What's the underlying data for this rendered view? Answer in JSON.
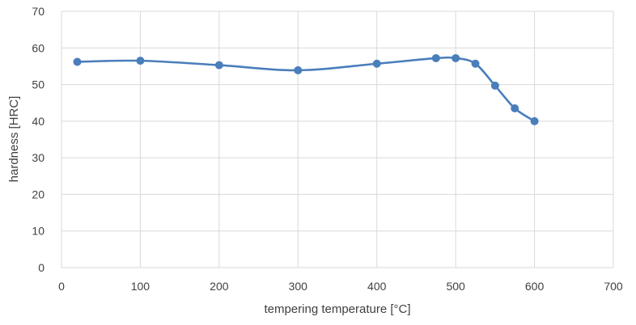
{
  "chart_data": {
    "type": "line",
    "title": "",
    "xlabel": "tempering temperature [°C]",
    "ylabel": "hardness [HRC]",
    "xlim": [
      0,
      700
    ],
    "ylim": [
      0,
      70
    ],
    "x_ticks": [
      0,
      100,
      200,
      300,
      400,
      500,
      600,
      700
    ],
    "y_ticks": [
      0,
      10,
      20,
      30,
      40,
      50,
      60,
      70
    ],
    "grid": true,
    "legend": "none",
    "series": [
      {
        "x": [
          20,
          100,
          200,
          300,
          400,
          475,
          500,
          525,
          550,
          575,
          600
        ],
        "y": [
          56.2,
          56.5,
          55.3,
          53.9,
          55.7,
          57.2,
          57.2,
          55.7,
          49.7,
          43.5,
          40.0
        ],
        "color": "#4a7ebb"
      }
    ]
  }
}
